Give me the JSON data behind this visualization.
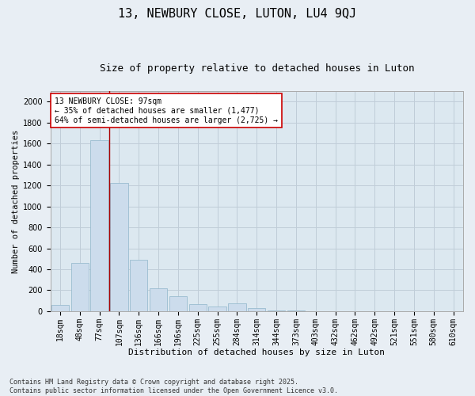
{
  "title": "13, NEWBURY CLOSE, LUTON, LU4 9QJ",
  "subtitle": "Size of property relative to detached houses in Luton",
  "xlabel": "Distribution of detached houses by size in Luton",
  "ylabel": "Number of detached properties",
  "categories": [
    "18sqm",
    "48sqm",
    "77sqm",
    "107sqm",
    "136sqm",
    "166sqm",
    "196sqm",
    "225sqm",
    "255sqm",
    "284sqm",
    "314sqm",
    "344sqm",
    "373sqm",
    "403sqm",
    "432sqm",
    "462sqm",
    "492sqm",
    "521sqm",
    "551sqm",
    "580sqm",
    "610sqm"
  ],
  "values": [
    60,
    460,
    1630,
    1220,
    490,
    220,
    140,
    65,
    45,
    75,
    30,
    10,
    5,
    2,
    2,
    1,
    0,
    0,
    0,
    0,
    0
  ],
  "bar_color": "#ccdcec",
  "bar_edge_color": "#9abcd0",
  "grid_color": "#c0cdd8",
  "background_color": "#dce8f0",
  "vline_color": "#aa0000",
  "annotation_text": "13 NEWBURY CLOSE: 97sqm\n← 35% of detached houses are smaller (1,477)\n64% of semi-detached houses are larger (2,725) →",
  "annotation_box_color": "#ffffff",
  "annotation_box_edge_color": "#cc0000",
  "ylim": [
    0,
    2100
  ],
  "yticks": [
    0,
    200,
    400,
    600,
    800,
    1000,
    1200,
    1400,
    1600,
    1800,
    2000
  ],
  "footer": "Contains HM Land Registry data © Crown copyright and database right 2025.\nContains public sector information licensed under the Open Government Licence v3.0.",
  "title_fontsize": 11,
  "subtitle_fontsize": 9,
  "xlabel_fontsize": 8,
  "ylabel_fontsize": 7.5,
  "tick_fontsize": 7,
  "annotation_fontsize": 7,
  "footer_fontsize": 6
}
